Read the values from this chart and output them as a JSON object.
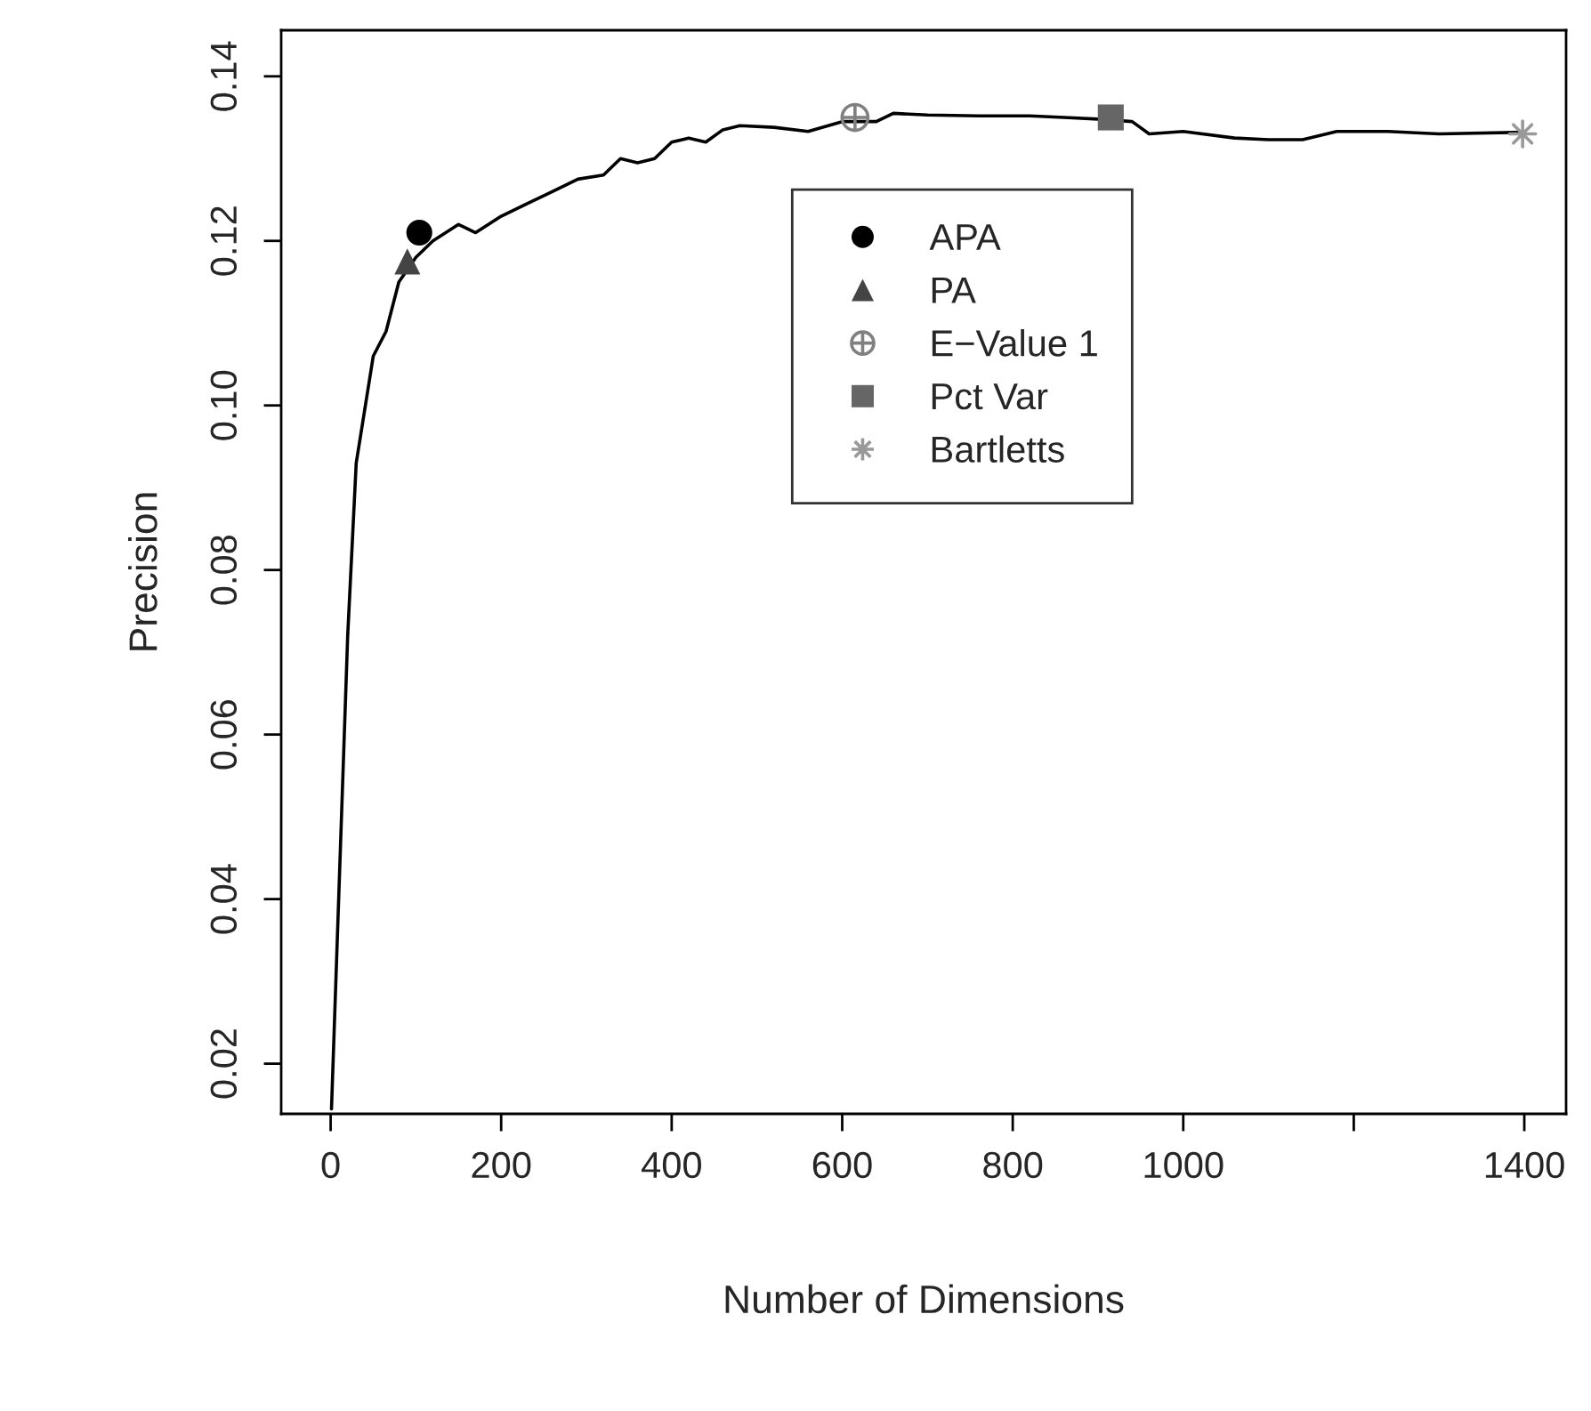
{
  "chart_data": {
    "type": "line",
    "xlabel": "Number of Dimensions",
    "ylabel": "Precision",
    "xlim": [
      -58,
      1449
    ],
    "ylim": [
      0.0139,
      0.1456
    ],
    "xticks": [
      0,
      200,
      400,
      600,
      800,
      1000,
      {
        "value": 1200,
        "label": null
      },
      1400
    ],
    "yticks": [
      0.02,
      0.04,
      0.06,
      0.08,
      {
        "value": 0.1,
        "label": "0.10"
      },
      0.12,
      0.14
    ],
    "grid": false,
    "legend": "top",
    "series": [
      {
        "color": "#000000",
        "marker": "none",
        "line_style": "solid",
        "x": [
          1,
          20,
          30,
          50,
          65,
          80,
          100,
          120,
          150,
          170,
          200,
          230,
          260,
          290,
          320,
          340,
          360,
          380,
          400,
          420,
          440,
          460,
          480,
          520,
          560,
          600,
          640,
          660,
          700,
          760,
          820,
          860,
          900,
          940,
          960,
          1000,
          1060,
          1100,
          1140,
          1180,
          1240,
          1300,
          1400
        ],
        "values": [
          0.0145,
          0.072,
          0.093,
          0.106,
          0.109,
          0.115,
          0.118,
          0.12,
          0.122,
          0.121,
          0.123,
          0.1245,
          0.126,
          0.1275,
          0.128,
          0.13,
          0.1295,
          0.13,
          0.132,
          0.1325,
          0.132,
          0.1335,
          0.134,
          0.1338,
          0.1333,
          0.1345,
          0.1345,
          0.1355,
          0.1353,
          0.1352,
          0.1352,
          0.135,
          0.1348,
          0.1345,
          0.133,
          0.1333,
          0.1325,
          0.1323,
          0.1323,
          0.1333,
          0.1333,
          0.133,
          0.1332
        ]
      },
      {
        "type": "scatter",
        "name": "APA",
        "color": "#000000",
        "marker": "circle",
        "x": [
          104
        ],
        "values": [
          0.121
        ]
      },
      {
        "type": "scatter",
        "name": "PA",
        "color": "#444444",
        "marker": "triangle",
        "x": [
          90
        ],
        "values": [
          0.1175
        ]
      },
      {
        "type": "scatter",
        "name": "E−Value 1",
        "color": "#808080",
        "marker": "cross",
        "x": [
          615
        ],
        "values": [
          0.135
        ]
      },
      {
        "type": "scatter",
        "name": "Pct Var",
        "color": "#666666",
        "marker": "square",
        "x": [
          915
        ],
        "values": [
          0.135
        ]
      },
      {
        "type": "scatter",
        "name": "Bartletts",
        "color": "#999999",
        "marker": "star",
        "x": [
          1398
        ],
        "values": [
          0.133
        ]
      }
    ]
  }
}
